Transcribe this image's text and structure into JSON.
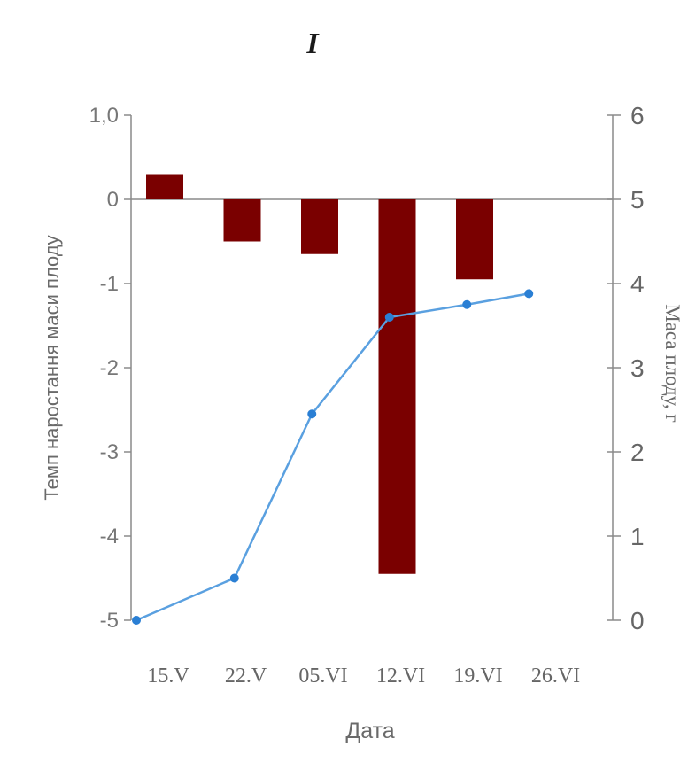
{
  "chart_data": {
    "type": "bar",
    "panel_label": "I",
    "xlabel": "Дата",
    "categories": [
      "15.V",
      "22.V",
      "05.VI",
      "12.VI",
      "19.VI",
      "26.VI"
    ],
    "left_axis": {
      "label": "Темп наростання маси плоду",
      "ylim": [
        -5,
        1
      ],
      "ticks": [
        1,
        0,
        -1,
        -2,
        -3,
        -4,
        -5
      ],
      "tick_labels": [
        "1,0",
        "0",
        "-1",
        "-2",
        "-3",
        "-4",
        "-5"
      ]
    },
    "right_axis": {
      "label": "Маса плоду, г",
      "ylim": [
        0,
        6
      ],
      "ticks": [
        0,
        1,
        2,
        3,
        4,
        5,
        6
      ],
      "tick_labels": [
        "0",
        "1",
        "2",
        "3",
        "4",
        "5",
        "6"
      ]
    },
    "series": [
      {
        "kind": "bar",
        "axis": "left",
        "color": "#7a0000",
        "values": [
          0.3,
          -0.5,
          -0.65,
          -4.45,
          -0.95,
          null
        ]
      },
      {
        "kind": "line",
        "axis": "right",
        "color": "#5aa0e0",
        "marker_color": "#2a7fd4",
        "x_positions": [
          0,
          1.3,
          2.3,
          3.3,
          4.3,
          5.1
        ],
        "values": [
          0.0,
          0.5,
          2.45,
          3.6,
          3.75,
          3.88
        ]
      }
    ],
    "grid": false
  }
}
